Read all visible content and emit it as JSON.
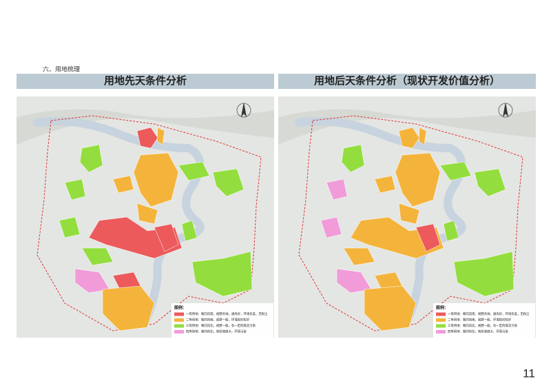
{
  "header": {
    "section": "六、用地梳理"
  },
  "panels": [
    {
      "title": "用地先天条件分析"
    },
    {
      "title": "用地后天条件分析（现状开发价值分析）"
    }
  ],
  "legend": {
    "title": "图例：",
    "items": [
      "一等用地：朝向向南，视野开阔，通风好，环境优美，无粉尘",
      "二等用地：朝向向南，视野一般，环境相对较好",
      "三等用地：朝向向北，视野一般，有一定的噪音污染",
      "四等用地：朝向向北，地段坡度大，环境污染"
    ]
  },
  "page_number": "11"
}
